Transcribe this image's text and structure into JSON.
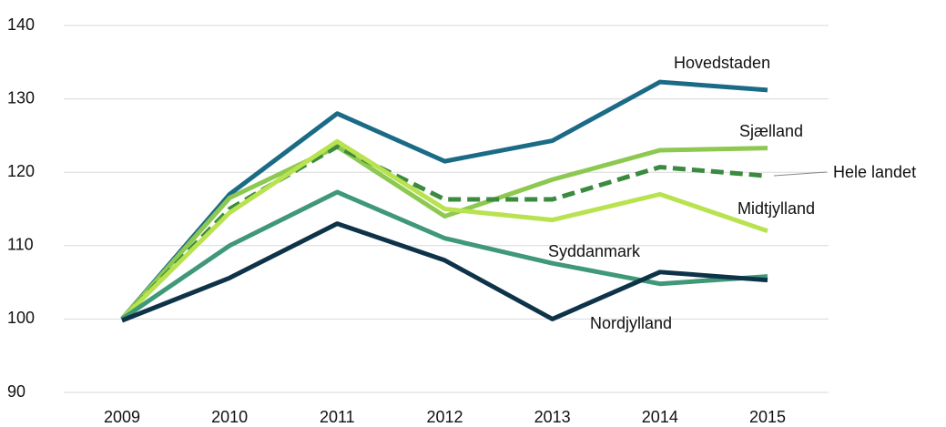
{
  "chart_data": {
    "type": "line",
    "categories": [
      "2009",
      "2010",
      "2011",
      "2012",
      "2013",
      "2014",
      "2015"
    ],
    "ylim": [
      90,
      140
    ],
    "yticks": [
      90,
      100,
      110,
      120,
      130,
      140
    ],
    "grid": true,
    "series": [
      {
        "name": "Hovedstaden",
        "color": "#1b6b86",
        "dashed": false,
        "values": [
          100,
          117,
          128,
          121.5,
          124.3,
          132.3,
          131.2
        ]
      },
      {
        "name": "Sjælland",
        "color": "#8dc850",
        "dashed": false,
        "values": [
          100,
          116.5,
          123.5,
          114,
          119,
          123,
          123.3
        ]
      },
      {
        "name": "Hele landet",
        "color": "#3a8a3f",
        "dashed": true,
        "values": [
          100,
          115,
          123.5,
          116.3,
          116.3,
          120.7,
          119.5
        ]
      },
      {
        "name": "Midtjylland",
        "color": "#b8e24e",
        "dashed": false,
        "values": [
          100,
          114.5,
          124.2,
          115,
          113.5,
          117,
          112
        ]
      },
      {
        "name": "Syddanmark",
        "color": "#3f9878",
        "dashed": false,
        "values": [
          100,
          110,
          117.3,
          111,
          107.6,
          104.8,
          105.8
        ]
      },
      {
        "name": "Nordjylland",
        "color": "#0e3349",
        "dashed": false,
        "values": [
          99.8,
          105.6,
          113,
          108,
          100,
          106.4,
          105.3
        ]
      }
    ]
  }
}
